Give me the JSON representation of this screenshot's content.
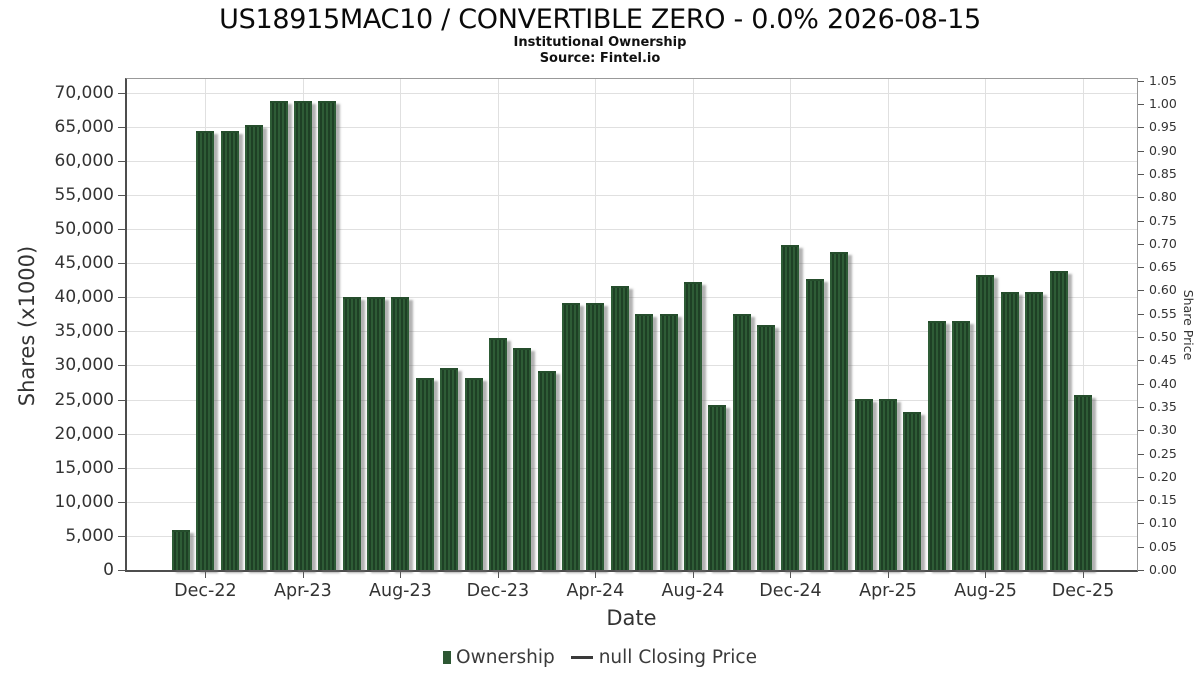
{
  "title": "US18915MAC10 / CONVERTIBLE ZERO - 0.0% 2026-08-15",
  "subtitle": "Institutional Ownership",
  "source": "Source: Fintel.io",
  "legend": {
    "ownership_label": "Ownership",
    "price_label": "null Closing Price"
  },
  "colors": {
    "bar_stripe_light": "#2e5c36",
    "bar_stripe_dark": "#1e4025",
    "bar_top_edge": "#254d2c",
    "legend_marker_green": "#2d5733",
    "grid": "#e0e0e0",
    "axis_line": "#4d4d4d",
    "frame": "#999999",
    "text": "#333333"
  },
  "chart_data": {
    "type": "bar",
    "title": "US18915MAC10 / CONVERTIBLE ZERO - 0.0% 2026-08-15",
    "subtitle": "Institutional Ownership",
    "source": "Source: Fintel.io",
    "xlabel": "Date",
    "ylabel_left": "Shares (x1000)",
    "ylabel_right": "Share Price",
    "ylim_left": [
      0,
      70000
    ],
    "ylim_right": [
      0,
      1.05
    ],
    "grid": true,
    "legend_position": "bottom",
    "categories": [
      "Nov-22",
      "Dec-22",
      "Jan-23",
      "Feb-23",
      "Mar-23",
      "Apr-23",
      "May-23",
      "Jun-23",
      "Jul-23",
      "Aug-23",
      "Sep-23",
      "Oct-23",
      "Nov-23",
      "Dec-23",
      "Jan-24",
      "Feb-24",
      "Mar-24",
      "Apr-24",
      "May-24",
      "Jun-24",
      "Jul-24",
      "Aug-24",
      "Sep-24",
      "Oct-24",
      "Nov-24",
      "Dec-24",
      "Jan-25",
      "Feb-25",
      "Mar-25",
      "Apr-25",
      "May-25",
      "Jun-25",
      "Jul-25",
      "Aug-25",
      "Sep-25",
      "Oct-25",
      "Nov-25",
      "Dec-25"
    ],
    "series": [
      {
        "name": "Ownership",
        "type": "bar",
        "units": "shares_x1000",
        "values": [
          5900,
          64400,
          64400,
          65200,
          68800,
          68800,
          68800,
          40100,
          40100,
          40100,
          28100,
          29600,
          28100,
          34000,
          32500,
          29200,
          39200,
          39200,
          41600,
          37600,
          37600,
          42200,
          24200,
          37600,
          35900,
          47600,
          42600,
          46700,
          25100,
          25100,
          23200,
          36500,
          36500,
          43200,
          40800,
          40800,
          43900,
          25600
        ]
      },
      {
        "name": "null Closing Price",
        "type": "line",
        "units": "share_price",
        "values": []
      }
    ],
    "yticks_left_labels": [
      "0",
      "5,000",
      "10,000",
      "15,000",
      "20,000",
      "25,000",
      "30,000",
      "35,000",
      "40,000",
      "45,000",
      "50,000",
      "55,000",
      "60,000",
      "65,000",
      "70,000"
    ],
    "yticks_right_labels": [
      "0.00",
      "0.05",
      "0.10",
      "0.15",
      "0.20",
      "0.25",
      "0.30",
      "0.35",
      "0.40",
      "0.45",
      "0.50",
      "0.55",
      "0.60",
      "0.65",
      "0.70",
      "0.75",
      "0.80",
      "0.85",
      "0.90",
      "0.95",
      "1.00",
      "1.05"
    ],
    "xtick_labels": [
      "Dec-22",
      "Apr-23",
      "Aug-23",
      "Dec-23",
      "Apr-24",
      "Aug-24",
      "Dec-24",
      "Apr-25",
      "Aug-25",
      "Dec-25"
    ],
    "xtick_category_indices": [
      1,
      5,
      9,
      13,
      17,
      21,
      25,
      29,
      33,
      37
    ]
  }
}
